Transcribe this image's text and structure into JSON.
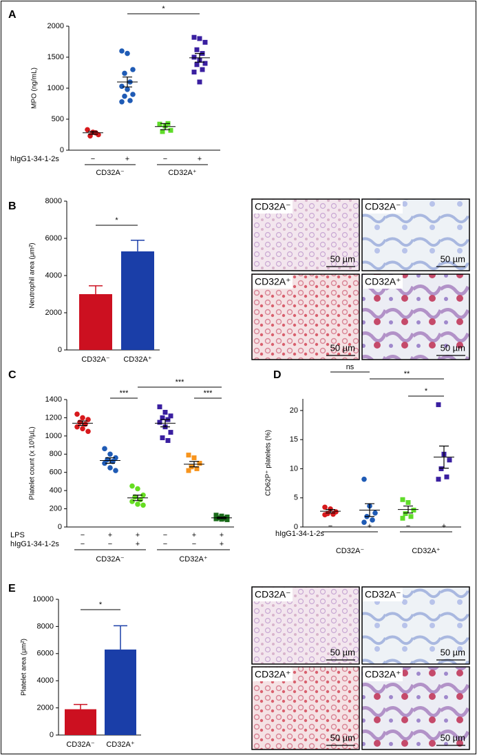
{
  "chart_data": [
    {
      "panel": "A",
      "type": "dot",
      "ylabel": "MPO (ng/mL)",
      "ylim": [
        0,
        2000
      ],
      "yticks": [
        0,
        500,
        1000,
        1500,
        2000
      ],
      "rows": [
        {
          "label": "hIgG1-34-1-2s",
          "values": [
            "−",
            "+",
            "−",
            "+"
          ]
        }
      ],
      "group_labels": [
        "CD32A⁻",
        "CD32A⁺"
      ],
      "groups": [
        {
          "color": "#d7191c",
          "marker": "circle",
          "values": [
            330,
            290,
            250,
            230,
            280
          ],
          "mean": 280,
          "sem": 25
        },
        {
          "color": "#1f5bb5",
          "marker": "circle",
          "values": [
            1600,
            1560,
            1300,
            1240,
            1100,
            1030,
            980,
            900,
            870,
            800,
            780
          ],
          "mean": 1100,
          "sem": 80
        },
        {
          "color": "#5fdc2a",
          "marker": "square",
          "values": [
            420,
            390,
            320,
            300,
            430
          ],
          "mean": 380,
          "sem": 50
        },
        {
          "color": "#3a1fa0",
          "marker": "square",
          "values": [
            1820,
            1800,
            1740,
            1620,
            1560,
            1500,
            1450,
            1400,
            1380,
            1300,
            1260,
            1100
          ],
          "mean": 1490,
          "sem": 70
        }
      ],
      "comparisons": [
        {
          "groups": [
            1,
            3
          ],
          "label": "*"
        }
      ]
    },
    {
      "panel": "B",
      "type": "bar",
      "ylabel": "Neutrophil area (μm²)",
      "ylim": [
        0,
        8000
      ],
      "yticks": [
        0,
        2000,
        4000,
        6000,
        8000
      ],
      "categories": [
        "CD32A⁻",
        "CD32A⁺"
      ],
      "values": [
        3000,
        5300
      ],
      "errors": [
        450,
        600
      ],
      "colors": [
        "#cc1020",
        "#1a3ea8"
      ],
      "comparisons": [
        {
          "groups": [
            0,
            1
          ],
          "label": "*"
        }
      ],
      "images": [
        {
          "label": "CD32A⁻",
          "scale": "50 µm"
        },
        {
          "label": "CD32A⁻",
          "scale": "50 µm"
        },
        {
          "label": "CD32A⁺",
          "scale": "50 µm"
        },
        {
          "label": "CD32A⁺",
          "scale": "50 µm"
        }
      ]
    },
    {
      "panel": "C",
      "type": "dot",
      "ylabel": "Platelet count (x 10³/µL)",
      "ylim": [
        0,
        1400
      ],
      "yticks": [
        0,
        200,
        400,
        600,
        800,
        1000,
        1200,
        1400
      ],
      "rows": [
        {
          "label": "LPS",
          "values": [
            "−",
            "+",
            "+",
            "−",
            "+",
            "+"
          ]
        },
        {
          "label": "hIgG1-34-1-2s",
          "values": [
            "−",
            "−",
            "+",
            "−",
            "−",
            "+"
          ]
        }
      ],
      "group_labels": [
        "CD32A⁻",
        "CD32A⁺"
      ],
      "groups": [
        {
          "color": "#d7191c",
          "marker": "circle",
          "values": [
            1240,
            1200,
            1180,
            1150,
            1130,
            1100,
            1080,
            1050
          ],
          "mean": 1140,
          "sem": 25
        },
        {
          "color": "#1f5bb5",
          "marker": "circle",
          "values": [
            860,
            800,
            760,
            740,
            720,
            700,
            650,
            620
          ],
          "mean": 730,
          "sem": 30
        },
        {
          "color": "#66dd22",
          "marker": "circle",
          "values": [
            450,
            420,
            350,
            330,
            300,
            280,
            250,
            240
          ],
          "mean": 320,
          "sem": 30
        },
        {
          "color": "#3a1fa0",
          "marker": "square",
          "values": [
            1320,
            1260,
            1220,
            1200,
            1180,
            1150,
            1100,
            1040,
            980,
            950
          ],
          "mean": 1140,
          "sem": 40
        },
        {
          "color": "#f7941d",
          "marker": "square",
          "values": [
            790,
            760,
            700,
            660,
            640,
            620
          ],
          "mean": 690,
          "sem": 30
        },
        {
          "color": "#1a6b1a",
          "marker": "square",
          "values": [
            130,
            120,
            110,
            100,
            95,
            90,
            85,
            80
          ],
          "mean": 100,
          "sem": 8
        }
      ],
      "comparisons": [
        {
          "groups": [
            1,
            2
          ],
          "label": "***"
        },
        {
          "groups": [
            2,
            5
          ],
          "label": "***"
        },
        {
          "groups": [
            4,
            5
          ],
          "label": "***"
        }
      ]
    },
    {
      "panel": "D",
      "type": "dot",
      "ylabel": "CD62P⁺ platelets (%)",
      "ylim": [
        0,
        22
      ],
      "yticks": [
        0,
        5,
        10,
        15,
        20
      ],
      "rows": [
        {
          "label": "hIgG1-34-1-2s",
          "values": [
            "−",
            "+",
            "−",
            "+"
          ]
        }
      ],
      "group_labels": [
        "CD32A⁻",
        "CD32A⁺"
      ],
      "groups": [
        {
          "color": "#d7191c",
          "marker": "circle",
          "values": [
            3.4,
            3.1,
            2.6,
            2.3,
            2.2,
            2.1
          ],
          "mean": 2.7,
          "sem": 0.3
        },
        {
          "color": "#1f5bb5",
          "marker": "circle",
          "values": [
            8.2,
            3.6,
            2.4,
            1.8,
            1.2,
            0.8
          ],
          "mean": 2.9,
          "sem": 1.1
        },
        {
          "color": "#5fdc2a",
          "marker": "square",
          "values": [
            4.7,
            4.2,
            2.9,
            2.3,
            1.8,
            1.5
          ],
          "mean": 3.0,
          "sem": 0.6
        },
        {
          "color": "#3a1fa0",
          "marker": "square",
          "values": [
            21,
            12.5,
            11.5,
            10,
            8.6,
            8.2
          ],
          "mean": 12.0,
          "sem": 1.9
        }
      ],
      "comparisons": [
        {
          "groups": [
            0,
            1
          ],
          "label": "ns"
        },
        {
          "groups": [
            1,
            3
          ],
          "label": "**"
        },
        {
          "groups": [
            2,
            3
          ],
          "label": "*"
        }
      ]
    },
    {
      "panel": "E",
      "type": "bar",
      "ylabel": "Platelet area (μm²)",
      "ylim": [
        0,
        10000
      ],
      "yticks": [
        0,
        2000,
        4000,
        6000,
        8000,
        10000
      ],
      "categories": [
        "CD32A⁻",
        "CD32A⁺"
      ],
      "values": [
        1900,
        6300
      ],
      "errors": [
        350,
        1750
      ],
      "colors": [
        "#cc1020",
        "#1a3ea8"
      ],
      "comparisons": [
        {
          "groups": [
            0,
            1
          ],
          "label": "*"
        }
      ],
      "images": [
        {
          "label": "CD32A⁻",
          "scale": "50 µm"
        },
        {
          "label": "CD32A⁻",
          "scale": "50 µm"
        },
        {
          "label": "CD32A⁺",
          "scale": "50 µm"
        },
        {
          "label": "CD32A⁺",
          "scale": "50 µm"
        }
      ]
    }
  ]
}
